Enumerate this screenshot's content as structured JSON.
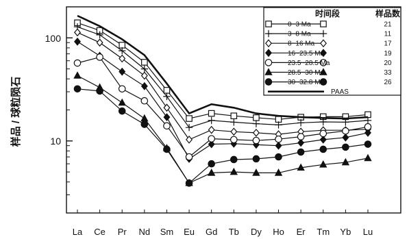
{
  "chart_data": {
    "type": "line",
    "ylabel": "样品 / 球粒陨石",
    "yscale": "log",
    "ylim": [
      2,
      200
    ],
    "yticks": [
      10,
      100
    ],
    "categories": [
      "La",
      "Ce",
      "Pr",
      "Nd",
      "Sm",
      "Eu",
      "Gd",
      "Tb",
      "Dy",
      "Ho",
      "Er",
      "Tm",
      "Yb",
      "Lu"
    ],
    "legend": {
      "header_period": "时间段",
      "header_count": "样品数",
      "placement": "top-right"
    },
    "series": [
      {
        "name": "0~3 Ma",
        "count": "21",
        "marker": "square-open",
        "values": [
          140,
          118,
          85,
          58,
          31,
          16.5,
          18.5,
          17.5,
          16.8,
          16.2,
          17,
          17.2,
          17.2,
          18
        ]
      },
      {
        "name": "3~8 Ma",
        "count": "11",
        "marker": "plus",
        "values": [
          128,
          107,
          75,
          50,
          27,
          13.5,
          15.8,
          15.2,
          14.7,
          14.3,
          15,
          15.3,
          15.2,
          15.8
        ]
      },
      {
        "name": "8~16 Ma",
        "count": "17",
        "marker": "diamond-open",
        "values": [
          113,
          90,
          63,
          43,
          21,
          10.3,
          12.8,
          12.3,
          12,
          11.6,
          12.3,
          12.7,
          12.7,
          13
        ]
      },
      {
        "name": "16~23.5 Ma",
        "count": "19",
        "marker": "diamond-filled",
        "values": [
          92,
          67,
          47,
          34,
          17,
          6.7,
          9.3,
          9.4,
          9.2,
          9,
          9.6,
          10.3,
          10.8,
          12
        ]
      },
      {
        "name": "23.5~28.5 Ma",
        "count": "20",
        "marker": "circle-open",
        "values": [
          57,
          65,
          32,
          24.5,
          14,
          7,
          10.5,
          10.3,
          10.1,
          10.4,
          11,
          11.8,
          12.5,
          13.7
        ]
      },
      {
        "name": "28.5~30 Ma",
        "count": "33",
        "marker": "triangle-filled",
        "values": [
          43,
          33,
          23.5,
          16.5,
          8.5,
          3.9,
          4.9,
          5,
          4.9,
          4.9,
          5.5,
          5.9,
          6.2,
          6.8
        ]
      },
      {
        "name": "30~32.8 Ma",
        "count": "26",
        "marker": "circle-filled",
        "values": [
          32,
          30.5,
          19.5,
          14.5,
          8.3,
          3.9,
          6,
          6.6,
          6.7,
          7,
          7.8,
          8.3,
          8.7,
          9.3
        ]
      },
      {
        "name": "PAAS",
        "count": "",
        "marker": "none",
        "values": [
          164,
          130,
          97,
          68,
          36,
          18.5,
          22.7,
          21,
          18.5,
          17.5,
          17,
          16.7,
          16.5,
          17
        ]
      }
    ]
  }
}
